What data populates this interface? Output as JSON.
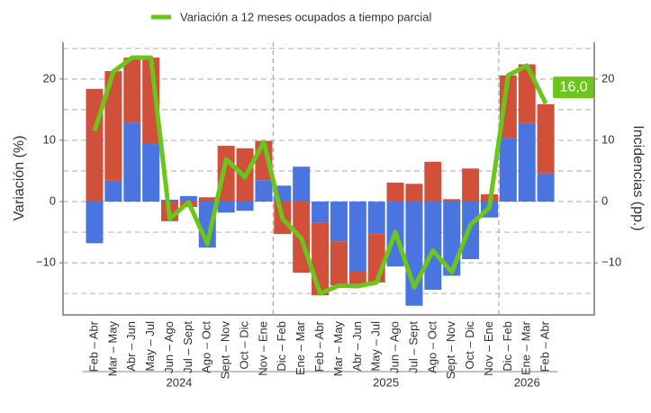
{
  "chart_data": {
    "type": "bar-line",
    "legend_position": "top",
    "y_label": "Variación (%)",
    "y2_label": "Incidencias (pp.)",
    "categories": [
      "Feb – Abr",
      "Mar – May",
      "Abr – Jun",
      "May – Jul",
      "Jun – Ago",
      "Jul – Sept",
      "Ago – Oct",
      "Sept – Nov",
      "Oct – Dic",
      "Nov – Ene",
      "Dic – Feb",
      "Ene – Mar",
      "Feb – Abr",
      "Mar – May",
      "Abr – Jun",
      "May – Jul",
      "Jun – Ago",
      "Jul – Sept",
      "Ago – Oct",
      "Sept – Nov",
      "Oct – Dic",
      "Nov – Ene",
      "Dic – Feb",
      "Ene – Mar",
      "Feb – Abr"
    ],
    "groups": [
      {
        "label": "2024",
        "size": 10
      },
      {
        "label": "2025",
        "size": 12
      },
      {
        "label": "2026",
        "size": 3
      }
    ],
    "series": [
      {
        "type": "bar",
        "axis": "y2",
        "color": "#4a74e0",
        "values": [
          -6.8,
          3.4,
          12.9,
          9.4,
          0.3,
          0.9,
          -7.5,
          -1.8,
          -1.5,
          3.5,
          2.6,
          5.7,
          -3.4,
          -6.5,
          -11.3,
          -5.3,
          -10.6,
          -17.0,
          -14.4,
          -12.1,
          -9.4,
          -2.6,
          10.3,
          12.8,
          4.6
        ]
      },
      {
        "type": "bar",
        "axis": "y2",
        "color": "#d1503a",
        "values": [
          18.4,
          17.9,
          10.6,
          14.1,
          -3.2,
          -0.9,
          0.7,
          9.1,
          8.7,
          6.4,
          -5.3,
          -11.6,
          -11.9,
          -7.2,
          -2.5,
          -7.9,
          3.1,
          2.9,
          6.5,
          0.4,
          5.4,
          1.2,
          10.3,
          9.6,
          11.3
        ]
      },
      {
        "type": "line",
        "name": "Variación a 12 meses ocupados a tiempo parcial",
        "color": "#6cc51a",
        "values": [
          11.5,
          21.2,
          23.5,
          23.5,
          -2.8,
          -0.1,
          -6.9,
          6.9,
          4.0,
          9.7,
          -2.8,
          -6.0,
          -15.0,
          -13.7,
          -13.8,
          -13.2,
          -5.0,
          -14.0,
          -8.0,
          -11.5,
          -3.8,
          -1.0,
          20.6,
          22.2,
          16.0
        ],
        "value_labels": [
          null,
          null,
          null,
          null,
          null,
          null,
          null,
          null,
          null,
          null,
          null,
          null,
          null,
          null,
          null,
          null,
          null,
          null,
          null,
          null,
          null,
          null,
          null,
          null,
          "16,0"
        ]
      }
    ],
    "ylim": [
      -18.5,
      26
    ],
    "yticks": [
      20,
      10,
      0,
      {
        "value": -10,
        "label": "−10"
      }
    ],
    "y2lim": [
      -18.5,
      26
    ],
    "y2ticks": [
      20,
      10,
      0,
      {
        "value": -10,
        "label": "−10"
      }
    ],
    "minor_yticks": [
      25,
      15,
      5,
      -5,
      -15
    ],
    "grid": true
  }
}
